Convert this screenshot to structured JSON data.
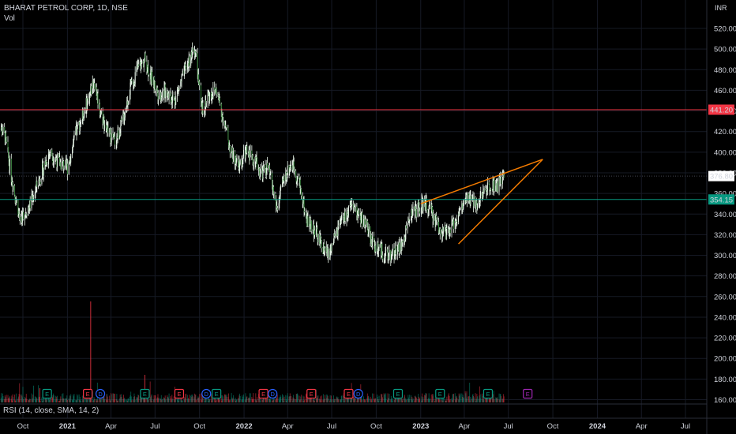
{
  "header": {
    "title": "BHARAT PETROL CORP, 1D, NSE",
    "volume_label": "Vol",
    "currency": "INR",
    "rsi_label": "RSI (14, close, SMA, 14, 2)"
  },
  "chart_data": {
    "type": "candlestick",
    "symbol": "BHARAT PETROL CORP",
    "interval": "1D",
    "exchange": "NSE",
    "currency": "INR",
    "ylim": [
      150,
      530
    ],
    "y_ticks": [
      160,
      180,
      200,
      220,
      240,
      260,
      280,
      300,
      320,
      340,
      360,
      380,
      400,
      420,
      440,
      460,
      480,
      500,
      520
    ],
    "y_tick_labels": [
      "160.00",
      "180.00",
      "200.00",
      "220.00",
      "240.00",
      "260.00",
      "280.00",
      "300.00",
      "320.00",
      "340.00",
      "360.00",
      "380.00",
      "400.00",
      "420.00",
      "440.00",
      "460.00",
      "480.00",
      "500.00",
      "520.00"
    ],
    "x_labels": [
      "Oct",
      "2021",
      "Apr",
      "Jul",
      "Oct",
      "2022",
      "Apr",
      "Jul",
      "Oct",
      "2023",
      "Apr",
      "Jul",
      "Oct",
      "2024",
      "Apr",
      "Jul"
    ],
    "x_label_dates": [
      "2020-10",
      "2021-01",
      "2021-04",
      "2021-07",
      "2021-10",
      "2022-01",
      "2022-04",
      "2022-07",
      "2022-10",
      "2023-01",
      "2023-04",
      "2023-07",
      "2023-10",
      "2024-01",
      "2024-04",
      "2024-07"
    ],
    "close_path": [
      [
        "2020-08-10",
        430
      ],
      [
        "2020-08-25",
        415
      ],
      [
        "2020-09-10",
        370
      ],
      [
        "2020-09-25",
        335
      ],
      [
        "2020-10-15",
        348
      ],
      [
        "2020-11-05",
        375
      ],
      [
        "2020-11-25",
        400
      ],
      [
        "2020-12-15",
        390
      ],
      [
        "2021-01-01",
        385
      ],
      [
        "2021-01-20",
        420
      ],
      [
        "2021-02-05",
        440
      ],
      [
        "2021-02-25",
        470
      ],
      [
        "2021-03-10",
        440
      ],
      [
        "2021-03-25",
        420
      ],
      [
        "2021-04-10",
        410
      ],
      [
        "2021-04-25",
        430
      ],
      [
        "2021-05-10",
        460
      ],
      [
        "2021-05-25",
        480
      ],
      [
        "2021-06-10",
        490
      ],
      [
        "2021-06-25",
        470
      ],
      [
        "2021-07-10",
        455
      ],
      [
        "2021-07-25",
        460
      ],
      [
        "2021-08-10",
        450
      ],
      [
        "2021-08-25",
        470
      ],
      [
        "2021-09-10",
        490
      ],
      [
        "2021-09-22",
        500
      ],
      [
        "2021-10-05",
        440
      ],
      [
        "2021-10-20",
        455
      ],
      [
        "2021-11-05",
        460
      ],
      [
        "2021-11-20",
        430
      ],
      [
        "2021-12-05",
        400
      ],
      [
        "2021-12-20",
        385
      ],
      [
        "2022-01-05",
        400
      ],
      [
        "2022-01-20",
        395
      ],
      [
        "2022-02-05",
        380
      ],
      [
        "2022-02-20",
        385
      ],
      [
        "2022-03-10",
        345
      ],
      [
        "2022-03-25",
        375
      ],
      [
        "2022-04-10",
        390
      ],
      [
        "2022-04-25",
        370
      ],
      [
        "2022-05-10",
        335
      ],
      [
        "2022-05-25",
        325
      ],
      [
        "2022-06-10",
        310
      ],
      [
        "2022-06-25",
        300
      ],
      [
        "2022-07-10",
        320
      ],
      [
        "2022-07-25",
        335
      ],
      [
        "2022-08-10",
        345
      ],
      [
        "2022-08-25",
        340
      ],
      [
        "2022-09-10",
        330
      ],
      [
        "2022-09-25",
        310
      ],
      [
        "2022-10-10",
        305
      ],
      [
        "2022-10-25",
        298
      ],
      [
        "2022-11-10",
        305
      ],
      [
        "2022-11-25",
        310
      ],
      [
        "2022-12-10",
        340
      ],
      [
        "2022-12-25",
        345
      ],
      [
        "2023-01-10",
        350
      ],
      [
        "2023-01-25",
        340
      ],
      [
        "2023-02-10",
        325
      ],
      [
        "2023-02-25",
        320
      ],
      [
        "2023-03-10",
        330
      ],
      [
        "2023-03-25",
        345
      ],
      [
        "2023-04-10",
        355
      ],
      [
        "2023-04-25",
        350
      ],
      [
        "2023-05-10",
        360
      ],
      [
        "2023-05-25",
        370
      ],
      [
        "2023-06-10",
        368
      ],
      [
        "2023-06-22",
        376.8
      ]
    ],
    "lines": [
      {
        "label": "441.20",
        "value": 441.2,
        "color": "#f23645"
      },
      {
        "label": "354.15",
        "value": 354.15,
        "color": "#089981"
      }
    ],
    "last_price": {
      "label": "376.80",
      "value": 376.8
    },
    "trendlines": [
      {
        "from": [
          "2023-01-01",
          350
        ],
        "to": [
          "2023-09-10",
          393
        ],
        "color": "#f57c00"
      },
      {
        "from": [
          "2023-03-20",
          311
        ],
        "to": [
          "2023-09-10",
          393
        ],
        "color": "#f57c00"
      }
    ],
    "events": [
      {
        "date": "2020-11-20",
        "type": "E"
      },
      {
        "date": "2021-02-12",
        "type": "E"
      },
      {
        "date": "2021-03-10",
        "type": "D"
      },
      {
        "date": "2021-06-10",
        "type": "E"
      },
      {
        "date": "2021-08-20",
        "type": "E"
      },
      {
        "date": "2021-10-15",
        "type": "D"
      },
      {
        "date": "2021-11-05",
        "type": "E"
      },
      {
        "date": "2022-02-10",
        "type": "E"
      },
      {
        "date": "2022-03-01",
        "type": "D"
      },
      {
        "date": "2022-05-20",
        "type": "E"
      },
      {
        "date": "2022-08-05",
        "type": "E"
      },
      {
        "date": "2022-08-25",
        "type": "D"
      },
      {
        "date": "2022-11-15",
        "type": "E"
      },
      {
        "date": "2023-02-10",
        "type": "E"
      },
      {
        "date": "2023-05-20",
        "type": "E"
      },
      {
        "date": "2023-08-10",
        "type": "E"
      }
    ],
    "volume_note": "volume bars along bottom pane, with spikes near 2021-02 and 2021-06"
  },
  "colors": {
    "up": "#089981",
    "down": "#f23645",
    "candle": "#e8f5e9",
    "grid": "#161a25",
    "background": "#000000",
    "text": "#d1d4dc",
    "trend": "#f57c00",
    "event_e": "#089981",
    "event_d": "#2962ff",
    "future_event": "#9c27b0"
  }
}
